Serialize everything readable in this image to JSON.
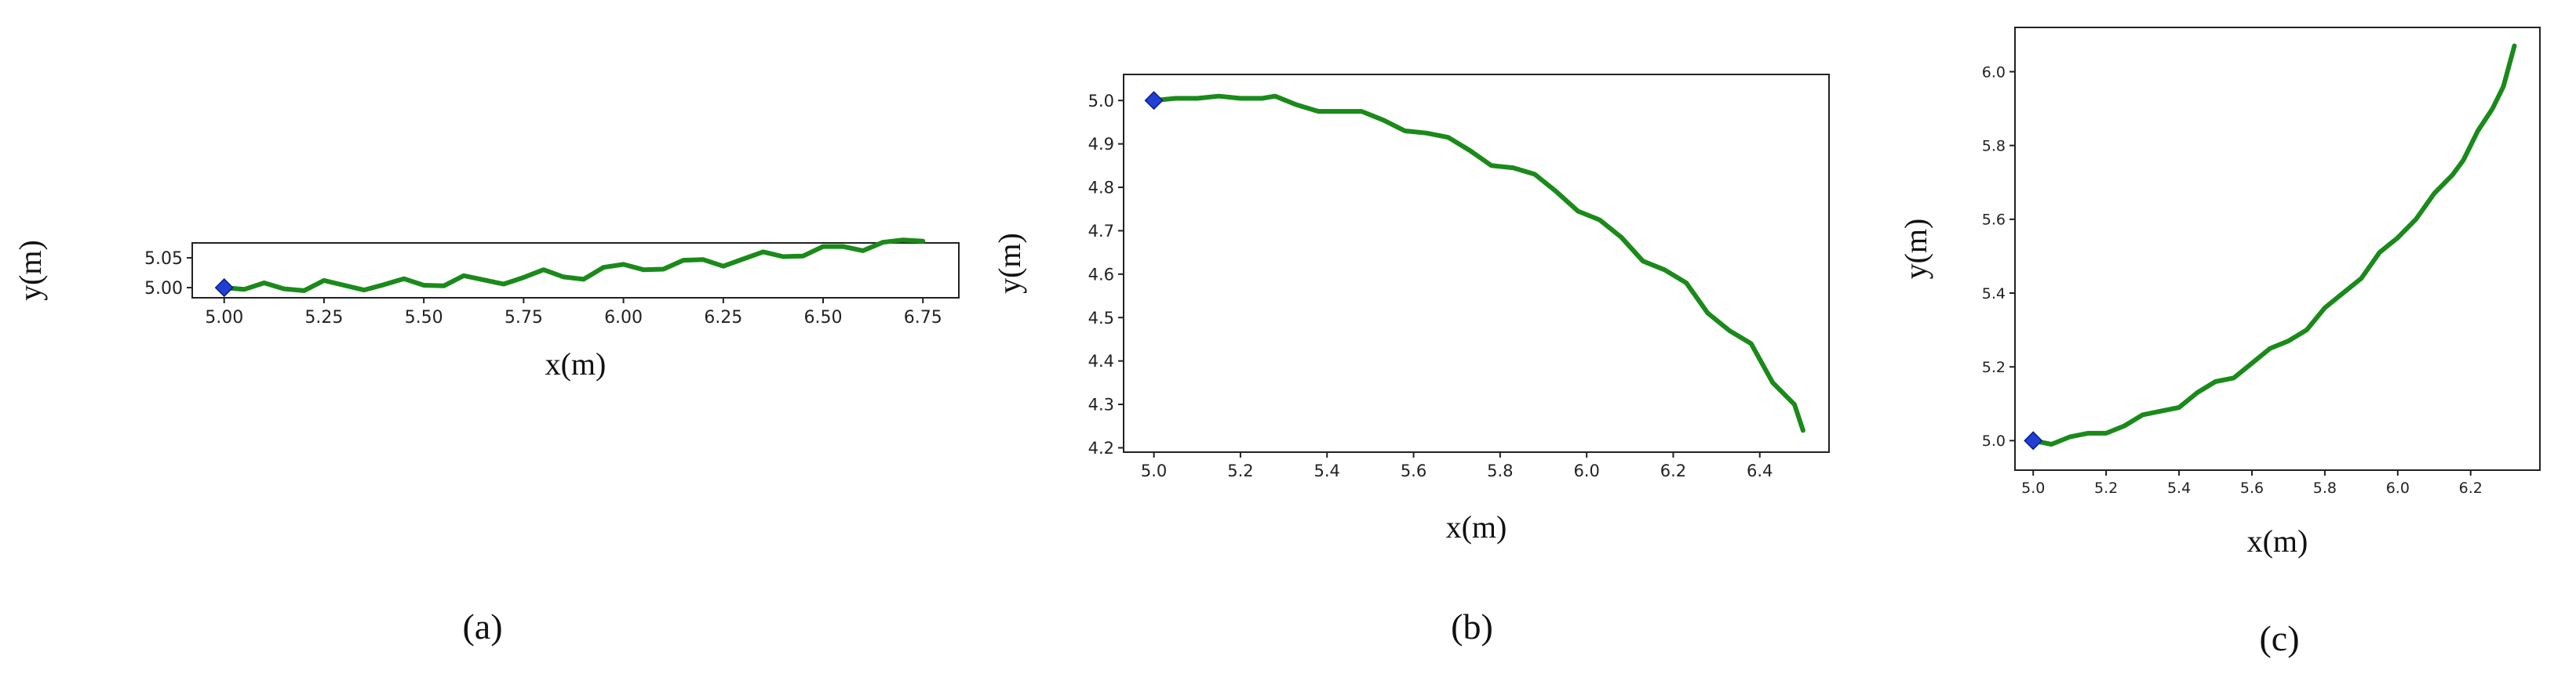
{
  "chart_data": [
    {
      "type": "line",
      "panel_label": "(a)",
      "xlabel": "x(m)",
      "ylabel": "y(m)",
      "xlim": [
        4.92,
        6.84
      ],
      "ylim": [
        4.983,
        5.075
      ],
      "xticks": [
        "5.00",
        "5.25",
        "5.50",
        "5.75",
        "6.00",
        "6.25",
        "6.50",
        "6.75"
      ],
      "yticks": [
        "5.00",
        "5.05"
      ],
      "grid": false,
      "series": [
        {
          "color": "#1a8a1a",
          "x": [
            5.0,
            5.05,
            5.1,
            5.15,
            5.2,
            5.25,
            5.3,
            5.35,
            5.4,
            5.45,
            5.5,
            5.55,
            5.6,
            5.65,
            5.7,
            5.75,
            5.8,
            5.85,
            5.9,
            5.95,
            6.0,
            6.05,
            6.1,
            6.15,
            6.2,
            6.25,
            6.3,
            6.35,
            6.4,
            6.45,
            6.5,
            6.55,
            6.6,
            6.65,
            6.7,
            6.75
          ],
          "y": [
            5.0,
            4.997,
            5.008,
            4.998,
            4.995,
            5.012,
            5.004,
            4.996,
            5.005,
            5.015,
            5.004,
            5.003,
            5.02,
            5.013,
            5.006,
            5.017,
            5.03,
            5.018,
            5.014,
            5.034,
            5.039,
            5.03,
            5.031,
            5.046,
            5.047,
            5.036,
            5.048,
            5.06,
            5.052,
            5.053,
            5.069,
            5.069,
            5.062,
            5.076,
            5.08,
            5.078
          ]
        }
      ],
      "start_marker": {
        "x": 5.0,
        "y": 5.0,
        "color": "#1f3fd6"
      }
    },
    {
      "type": "line",
      "panel_label": "(b)",
      "xlabel": "x(m)",
      "ylabel": "y(m)",
      "xlim": [
        4.93,
        6.56
      ],
      "ylim": [
        4.19,
        5.06
      ],
      "xticks": [
        "5.0",
        "5.2",
        "5.4",
        "5.6",
        "5.8",
        "6.0",
        "6.2",
        "6.4"
      ],
      "yticks": [
        "4.2",
        "4.3",
        "4.4",
        "4.5",
        "4.6",
        "4.7",
        "4.8",
        "4.9",
        "5.0"
      ],
      "grid": false,
      "series": [
        {
          "color": "#1a8a1a",
          "x": [
            5.0,
            5.05,
            5.1,
            5.15,
            5.2,
            5.25,
            5.28,
            5.33,
            5.38,
            5.43,
            5.48,
            5.53,
            5.58,
            5.63,
            5.68,
            5.73,
            5.78,
            5.83,
            5.88,
            5.93,
            5.98,
            6.03,
            6.08,
            6.13,
            6.18,
            6.23,
            6.28,
            6.33,
            6.38,
            6.43,
            6.48,
            6.5
          ],
          "y": [
            5.0,
            5.005,
            5.005,
            5.01,
            5.005,
            5.005,
            5.01,
            4.99,
            4.975,
            4.975,
            4.975,
            4.955,
            4.93,
            4.925,
            4.915,
            4.885,
            4.85,
            4.845,
            4.83,
            4.79,
            4.745,
            4.725,
            4.685,
            4.63,
            4.61,
            4.58,
            4.51,
            4.47,
            4.44,
            4.35,
            4.3,
            4.24
          ]
        }
      ],
      "start_marker": {
        "x": 5.0,
        "y": 5.0,
        "color": "#1f3fd6"
      }
    },
    {
      "type": "line",
      "panel_label": "(c)",
      "xlabel": "x(m)",
      "ylabel": "y(m)",
      "xlim": [
        4.95,
        6.39
      ],
      "ylim": [
        4.92,
        6.12
      ],
      "xticks": [
        "5.0",
        "5.2",
        "5.4",
        "5.6",
        "5.8",
        "6.0",
        "6.2"
      ],
      "yticks": [
        "5.0",
        "5.2",
        "5.4",
        "5.6",
        "5.8",
        "6.0"
      ],
      "grid": false,
      "series": [
        {
          "color": "#1a8a1a",
          "x": [
            5.0,
            5.05,
            5.1,
            5.15,
            5.2,
            5.25,
            5.3,
            5.35,
            5.4,
            5.45,
            5.5,
            5.55,
            5.6,
            5.65,
            5.7,
            5.75,
            5.8,
            5.85,
            5.9,
            5.95,
            6.0,
            6.05,
            6.1,
            6.15,
            6.18,
            6.22,
            6.26,
            6.29,
            6.32
          ],
          "y": [
            5.0,
            4.99,
            5.01,
            5.02,
            5.02,
            5.04,
            5.07,
            5.08,
            5.09,
            5.13,
            5.16,
            5.17,
            5.21,
            5.25,
            5.27,
            5.3,
            5.36,
            5.4,
            5.44,
            5.51,
            5.55,
            5.6,
            5.67,
            5.72,
            5.76,
            5.84,
            5.9,
            5.96,
            6.07
          ]
        }
      ],
      "start_marker": {
        "x": 5.0,
        "y": 5.0,
        "color": "#1f3fd6"
      }
    }
  ]
}
